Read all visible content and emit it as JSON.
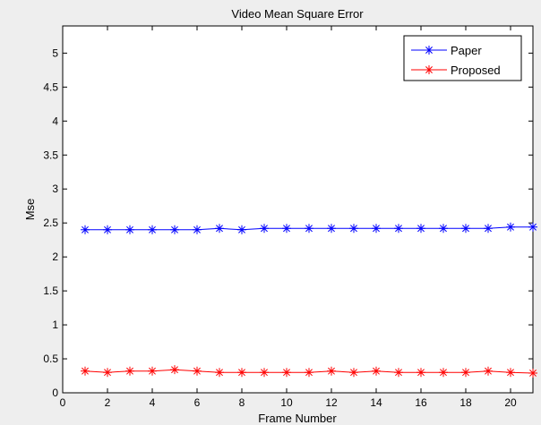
{
  "chart_data": {
    "type": "line",
    "title": "Video Mean Square Error",
    "xlabel": "Frame Number",
    "ylabel": "Mse",
    "xlim": [
      0,
      21
    ],
    "ylim": [
      0,
      5.4
    ],
    "x_ticks": [
      "0",
      "2",
      "4",
      "6",
      "8",
      "10",
      "12",
      "14",
      "16",
      "18",
      "20"
    ],
    "y_ticks": [
      "0",
      "0.5",
      "1",
      "1.5",
      "2",
      "2.5",
      "3",
      "3.5",
      "4",
      "4.5",
      "5"
    ],
    "grid": false,
    "legend_position": "top-right",
    "marker": "*",
    "x": [
      1,
      2,
      3,
      4,
      5,
      6,
      7,
      8,
      9,
      10,
      11,
      12,
      13,
      14,
      15,
      16,
      17,
      18,
      19,
      20,
      21
    ],
    "series": [
      {
        "name": "Paper",
        "color": "#0000ff",
        "values": [
          2.4,
          2.4,
          2.4,
          2.4,
          2.4,
          2.4,
          2.42,
          2.4,
          2.42,
          2.42,
          2.42,
          2.42,
          2.42,
          2.42,
          2.42,
          2.42,
          2.42,
          2.42,
          2.42,
          2.44,
          2.44
        ]
      },
      {
        "name": "Proposed",
        "color": "#ff0000",
        "values": [
          0.32,
          0.3,
          0.32,
          0.32,
          0.34,
          0.32,
          0.3,
          0.3,
          0.3,
          0.3,
          0.3,
          0.32,
          0.3,
          0.32,
          0.3,
          0.3,
          0.3,
          0.3,
          0.32,
          0.3,
          0.29
        ]
      }
    ]
  }
}
